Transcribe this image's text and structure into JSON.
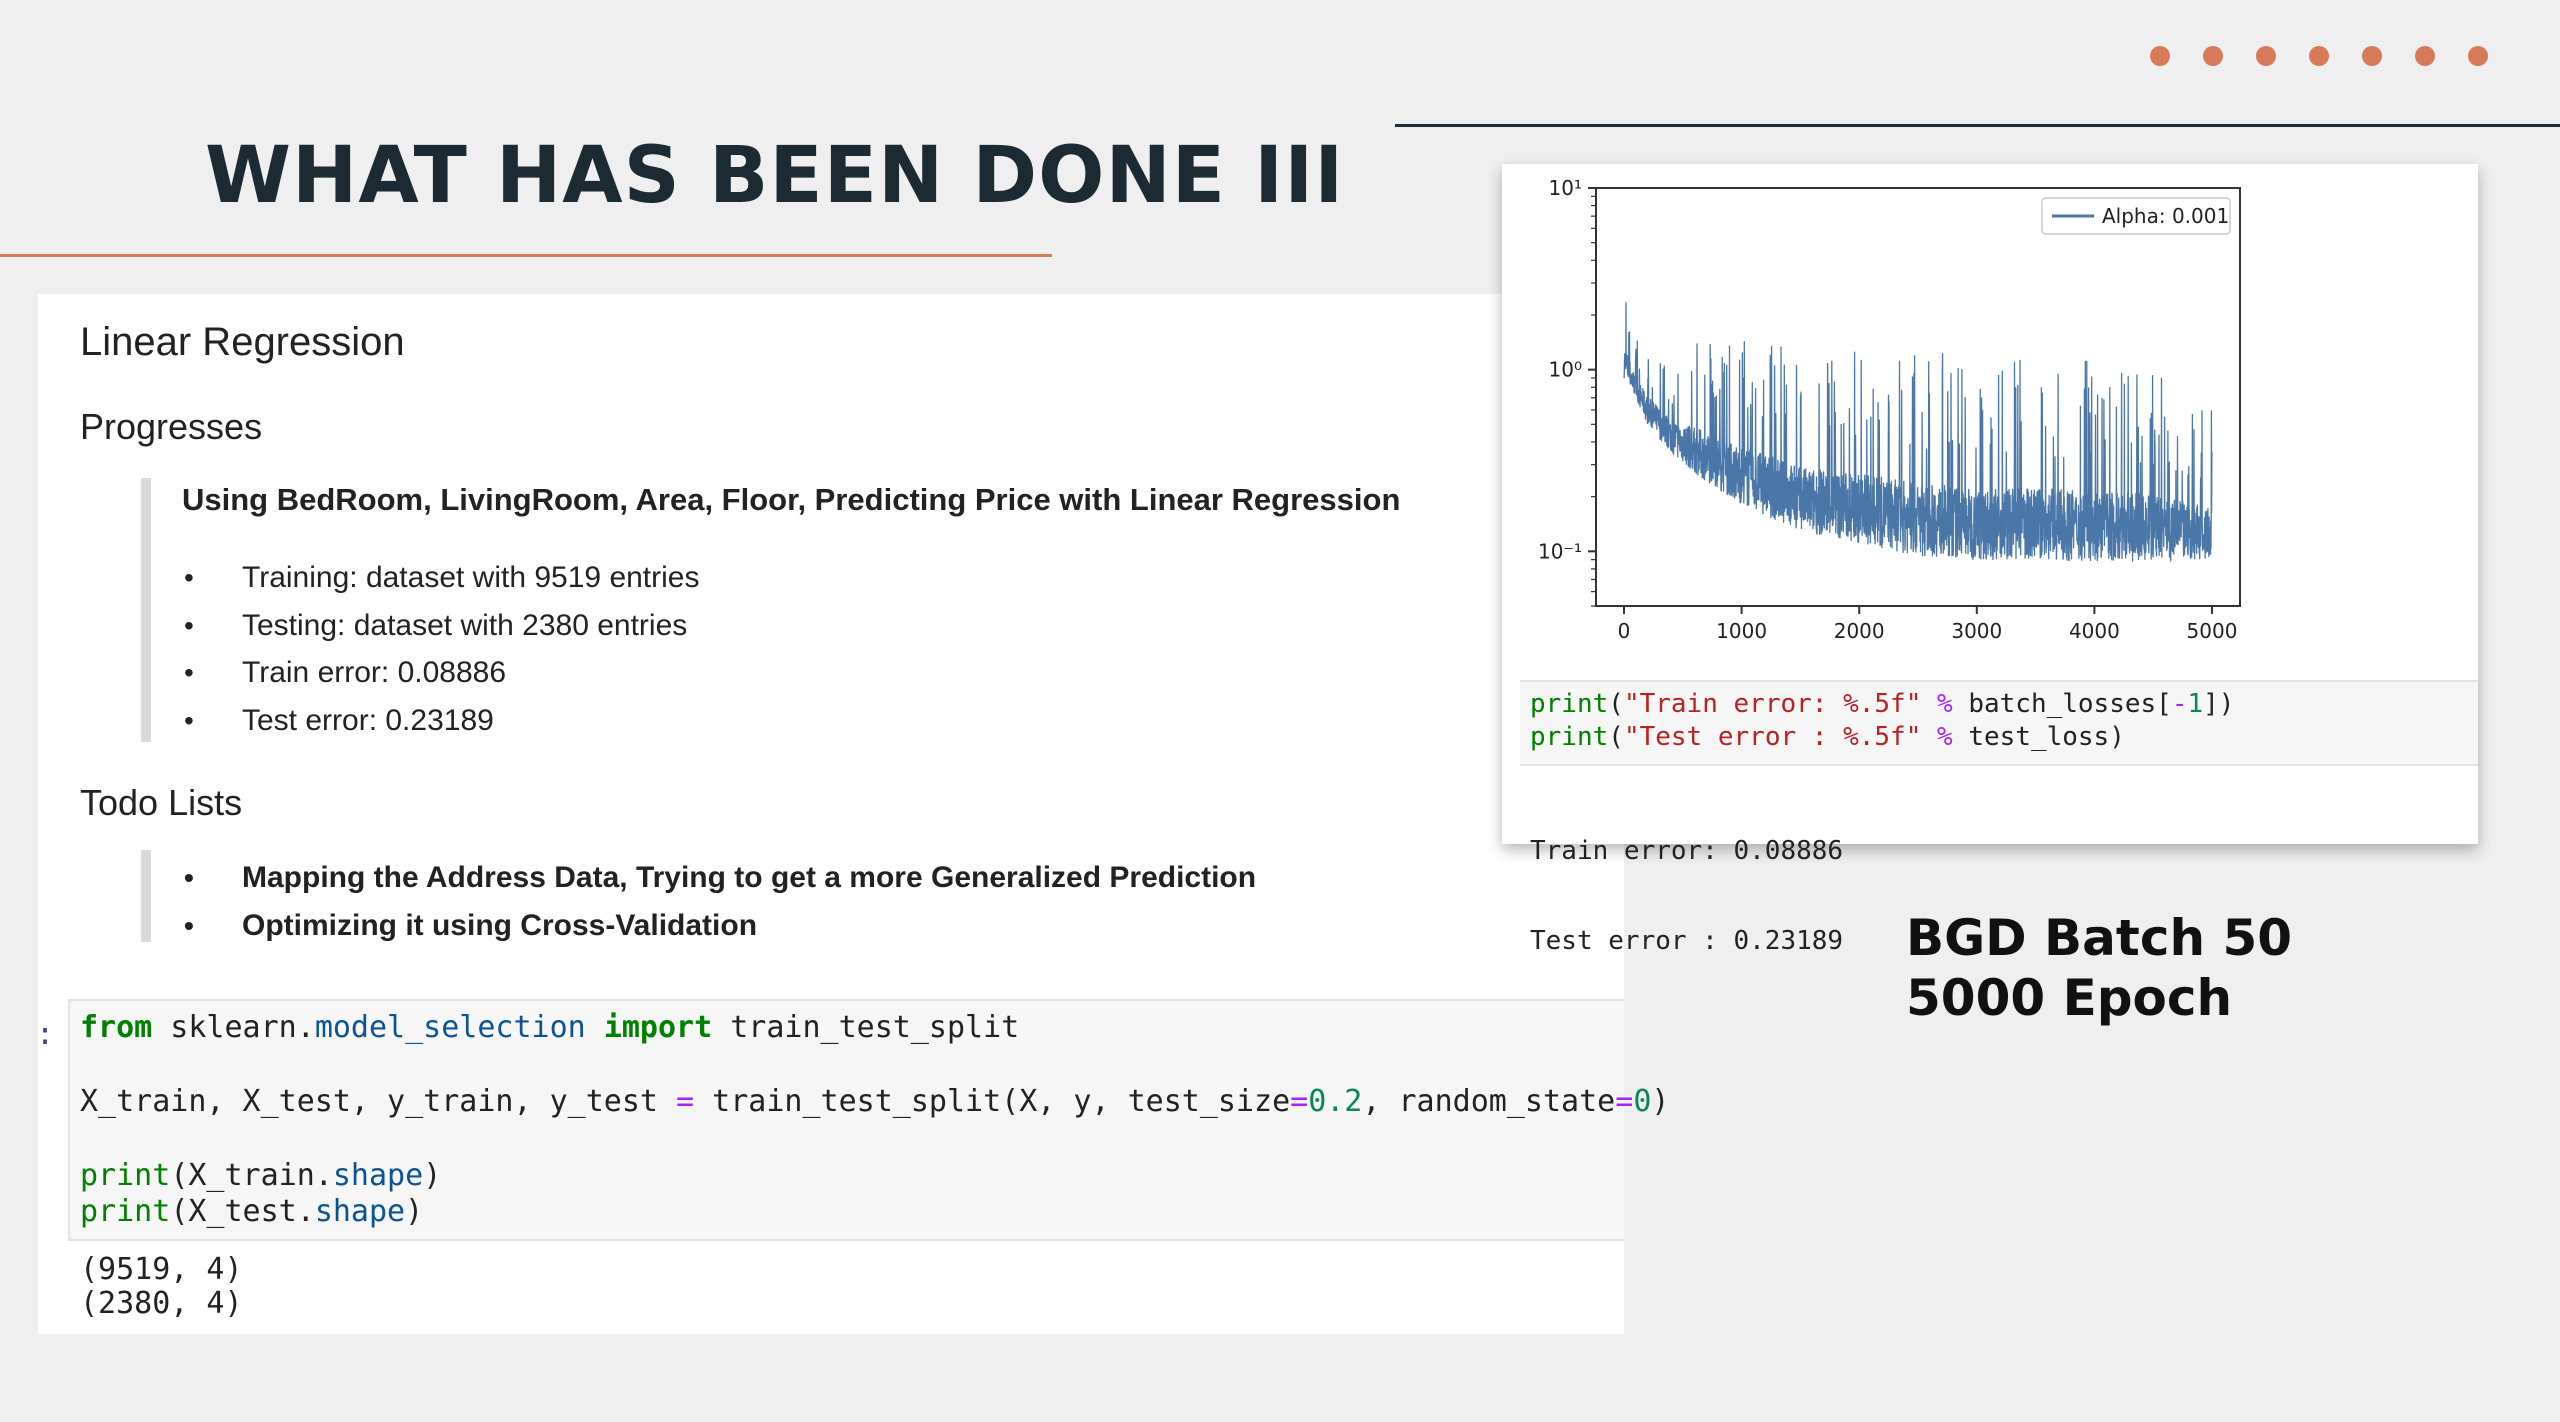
{
  "slide": {
    "title": "WHAT HAS BEEN DONE III",
    "caption_line1": "BGD Batch 50",
    "caption_line2": "5000 Epoch",
    "accent_color": "#d77a57",
    "dark_color": "#1b2a33"
  },
  "notebook": {
    "heading": "Linear Regression",
    "progresses": {
      "heading": "Progresses",
      "summary": "Using BedRoom, LivingRoom, Area, Floor, Predicting Price with Linear Regression",
      "items": [
        "Training: dataset with 9519 entries",
        "Testing: dataset with 2380 entries",
        "Train error: 0.08886",
        "Test error: 0.23189"
      ]
    },
    "todo": {
      "heading": "Todo Lists",
      "items": [
        "Mapping the Address Data, Trying to get a more Generalized Prediction",
        "Optimizing it using Cross-Validation"
      ]
    },
    "cell1": {
      "prompt": ":",
      "lines": [
        "from sklearn.model_selection import train_test_split",
        "",
        "X_train, X_test, y_train, y_test = train_test_split(X, y, test_size=0.2, random_state=0)",
        "",
        "print(X_train.shape)",
        "print(X_test.shape)"
      ],
      "output": [
        "(9519, 4)",
        "(2380, 4)"
      ]
    },
    "cell2": {
      "lines": [
        "print(\"Train error: %.5f\" % batch_losses[-1])",
        "print(\"Test error : %.5f\" % test_loss)"
      ],
      "output": [
        "Train error: 0.08886",
        "Test error : 0.23189"
      ]
    }
  },
  "chart_data": {
    "type": "line",
    "title": "",
    "xlabel": "",
    "ylabel": "",
    "y_scale": "log",
    "xlim": [
      0,
      5000
    ],
    "ylim": [
      0.05,
      10
    ],
    "x_ticks": [
      "0",
      "1000",
      "2000",
      "3000",
      "4000",
      "5000"
    ],
    "y_ticks": [
      "10¹",
      "10⁰",
      "10⁻¹"
    ],
    "legend": "top-right",
    "series": [
      {
        "name": "Alpha: 0.001",
        "color": "#4a77a8",
        "x": [
          0,
          100,
          200,
          400,
          600,
          1000,
          1500,
          2000,
          2500,
          3000,
          3500,
          4000,
          4500,
          5000
        ],
        "y_low": [
          0.9,
          0.7,
          0.5,
          0.35,
          0.27,
          0.18,
          0.13,
          0.11,
          0.095,
          0.09,
          0.09,
          0.088,
          0.088,
          0.089
        ],
        "y_high": [
          3.2,
          1.5,
          1.4,
          1.2,
          1.4,
          1.5,
          1.3,
          1.4,
          1.3,
          1.2,
          1.2,
          1.1,
          1.0,
          0.6
        ]
      }
    ]
  }
}
